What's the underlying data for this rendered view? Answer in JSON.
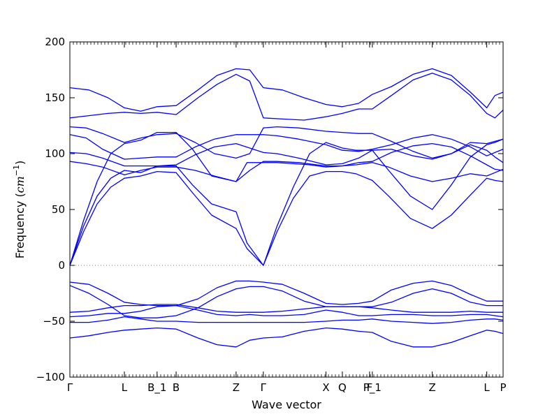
{
  "chart_data": {
    "type": "line",
    "xlabel": "Wave vector",
    "ylabel": "Frequency (cm⁻¹)",
    "ylabel_parts": {
      "prefix": "Frequency (",
      "unit_base": "cm",
      "unit_exp": "−1",
      "suffix": ")"
    },
    "ylim": [
      -100,
      200
    ],
    "yticks": [
      -100,
      -50,
      0,
      50,
      100,
      150,
      200
    ],
    "xlim": [
      0,
      15.9
    ],
    "grid": false,
    "line_color": "#0000ff",
    "zero_line_color": "#777777",
    "kpoints": [
      {
        "label": "Γ",
        "x": 0
      },
      {
        "label": "L",
        "x": 2.0
      },
      {
        "label": "B_1",
        "x": 3.2
      },
      {
        "label": "B",
        "x": 3.9
      },
      {
        "label": "Z",
        "x": 6.1
      },
      {
        "label": "Γ",
        "x": 7.1
      },
      {
        "label": "X",
        "x": 9.4
      },
      {
        "label": "Q",
        "x": 10.0
      },
      {
        "label": "F",
        "x": 11.0
      },
      {
        "label": "P_1",
        "x": 11.1
      },
      {
        "label": "Z",
        "x": 13.3
      },
      {
        "label": "L",
        "x": 15.3
      },
      {
        "label": "P",
        "x": 15.9
      }
    ],
    "series": [
      {
        "x": [
          0,
          0.5,
          1.0,
          1.5,
          2.0,
          2.6,
          3.2,
          3.9,
          4.5,
          5.2,
          6.1,
          6.5,
          7.1,
          7.6,
          8.2,
          8.8,
          9.4,
          10.0,
          10.5,
          11.1,
          11.7,
          12.5,
          13.3,
          14.0,
          14.7,
          15.3,
          15.6,
          15.9
        ],
        "values": [
          0,
          30,
          55,
          70,
          78,
          80,
          84,
          83,
          65,
          45,
          33,
          15,
          0,
          30,
          60,
          80,
          84,
          84,
          82,
          76,
          62,
          42,
          33,
          45,
          63,
          78,
          76,
          75
        ]
      },
      {
        "x": [
          0,
          0.5,
          1.0,
          1.5,
          2.0,
          2.6,
          3.2,
          3.9,
          4.5,
          5.2,
          6.1,
          6.5,
          7.1,
          7.6,
          8.2,
          8.8,
          9.4,
          10.0,
          10.5,
          11.1,
          11.7,
          12.5,
          13.3,
          14.0,
          14.7,
          15.3,
          15.6,
          15.9
        ],
        "values": [
          0,
          35,
          62,
          78,
          85,
          83,
          89,
          89,
          72,
          55,
          48,
          20,
          0,
          35,
          70,
          100,
          110,
          105,
          103,
          103,
          85,
          62,
          50,
          72,
          97,
          108,
          110,
          113
        ]
      },
      {
        "x": [
          0,
          0.5,
          1.0,
          1.5,
          2.0,
          2.6,
          3.2,
          3.9,
          4.5,
          5.2,
          6.1,
          6.5,
          7.1,
          7.6,
          8.2,
          8.8,
          9.4,
          10.0,
          10.5,
          11.1,
          11.7,
          12.5,
          13.3,
          14.0,
          14.7,
          15.3,
          15.6,
          15.9
        ],
        "values": [
          0,
          40,
          75,
          100,
          109,
          112,
          119,
          119,
          104,
          80,
          75,
          92,
          92,
          92,
          91,
          90,
          88,
          89,
          90,
          92,
          88,
          80,
          75,
          78,
          82,
          80,
          83,
          86
        ]
      },
      {
        "x": [
          0,
          0.6,
          1.2,
          2.0,
          2.6,
          3.2,
          3.9,
          4.6,
          5.3,
          6.1,
          6.6,
          7.1,
          7.6,
          8.4,
          9.4,
          10.0,
          10.6,
          11.1,
          11.8,
          12.6,
          13.3,
          14.0,
          14.7,
          15.3,
          15.6,
          15.9
        ],
        "values": [
          93,
          91,
          88,
          81,
          85,
          88,
          88,
          85,
          80,
          75,
          85,
          93,
          93,
          92,
          89,
          89,
          92,
          93,
          101,
          107,
          109,
          106,
          98,
          90,
          86,
          85
        ]
      },
      {
        "x": [
          0,
          0.6,
          1.2,
          2.0,
          2.6,
          3.2,
          3.9,
          4.6,
          5.3,
          6.1,
          6.6,
          7.1,
          7.6,
          8.4,
          9.4,
          10.0,
          10.6,
          11.1,
          11.8,
          12.6,
          13.3,
          14.0,
          14.7,
          15.3,
          15.6,
          15.9
        ],
        "values": [
          101,
          100,
          96,
          89,
          89,
          89,
          90,
          99,
          106,
          109,
          105,
          101,
          100,
          96,
          90,
          91,
          96,
          103,
          104,
          98,
          95,
          100,
          108,
          103,
          97,
          92
        ]
      },
      {
        "x": [
          0,
          0.6,
          1.2,
          2.0,
          2.6,
          3.2,
          3.9,
          4.6,
          5.3,
          6.1,
          6.6,
          7.1,
          7.6,
          8.4,
          9.4,
          10.0,
          10.6,
          11.1,
          11.8,
          12.6,
          13.3,
          14.0,
          14.7,
          15.3,
          15.6,
          15.9
        ],
        "values": [
          117,
          114,
          104,
          95,
          96,
          97,
          97,
          106,
          113,
          117,
          117,
          117,
          116,
          113,
          108,
          103,
          102,
          104,
          108,
          114,
          117,
          113,
          106,
          98,
          101,
          104
        ]
      },
      {
        "x": [
          0,
          0.6,
          1.2,
          2.0,
          2.6,
          3.2,
          3.9,
          4.6,
          5.3,
          6.1,
          6.6,
          7.1,
          7.6,
          8.4,
          9.4,
          10.0,
          10.6,
          11.1,
          11.8,
          12.6,
          13.3,
          14.0,
          14.7,
          15.3,
          15.6,
          15.9
        ],
        "values": [
          124,
          123,
          118,
          110,
          114,
          117,
          118,
          110,
          100,
          96,
          100,
          123,
          124,
          123,
          120,
          119,
          118,
          118,
          111,
          102,
          96,
          100,
          110,
          109,
          111,
          113
        ]
      },
      {
        "x": [
          0,
          0.7,
          1.4,
          2.0,
          2.6,
          3.2,
          3.9,
          4.7,
          5.4,
          6.1,
          6.6,
          7.1,
          7.8,
          8.6,
          9.4,
          10.0,
          10.6,
          11.1,
          11.8,
          12.6,
          13.3,
          14.0,
          14.7,
          15.3,
          15.6,
          15.9
        ],
        "values": [
          132,
          134,
          136,
          137,
          136,
          137,
          135,
          150,
          162,
          171,
          165,
          132,
          131,
          130,
          133,
          136,
          140,
          140,
          152,
          166,
          172,
          166,
          152,
          136,
          132,
          139
        ]
      },
      {
        "x": [
          0,
          0.7,
          1.4,
          2.0,
          2.6,
          3.2,
          3.9,
          4.7,
          5.4,
          6.1,
          6.6,
          7.1,
          7.8,
          8.6,
          9.4,
          10.0,
          10.6,
          11.1,
          11.8,
          12.6,
          13.3,
          14.0,
          14.7,
          15.3,
          15.6,
          15.9
        ],
        "values": [
          159,
          157,
          150,
          141,
          138,
          142,
          143,
          157,
          170,
          176,
          175,
          159,
          157,
          150,
          144,
          142,
          145,
          153,
          160,
          171,
          176,
          170,
          155,
          141,
          152,
          155
        ]
      },
      {
        "x": [
          0,
          0.7,
          1.4,
          2.0,
          2.6,
          3.2,
          3.9,
          4.7,
          5.4,
          6.1,
          6.6,
          7.1,
          7.8,
          8.6,
          9.4,
          10.0,
          10.6,
          11.1,
          11.8,
          12.6,
          13.3,
          14.0,
          14.7,
          15.3,
          15.6,
          15.9
        ],
        "values": [
          -15,
          -17,
          -25,
          -33,
          -35,
          -36,
          -36,
          -30,
          -20,
          -14,
          -14,
          -15,
          -17,
          -25,
          -34,
          -35,
          -34,
          -32,
          -22,
          -16,
          -14,
          -18,
          -26,
          -32,
          -32,
          -32
        ]
      },
      {
        "x": [
          0,
          0.7,
          1.4,
          2.0,
          2.6,
          3.2,
          3.9,
          4.7,
          5.4,
          6.1,
          6.6,
          7.1,
          7.8,
          8.6,
          9.4,
          10.0,
          10.6,
          11.1,
          11.8,
          12.6,
          13.3,
          14.0,
          14.7,
          15.3,
          15.6,
          15.9
        ],
        "values": [
          -18,
          -25,
          -35,
          -45,
          -47,
          -47,
          -45,
          -38,
          -28,
          -21,
          -19,
          -19,
          -23,
          -32,
          -37,
          -37,
          -37,
          -37,
          -33,
          -25,
          -21,
          -25,
          -33,
          -36,
          -36,
          -36
        ]
      },
      {
        "x": [
          0,
          0.7,
          1.4,
          2.0,
          2.6,
          3.2,
          3.9,
          4.7,
          5.4,
          6.1,
          6.6,
          7.1,
          7.8,
          8.6,
          9.4,
          10.0,
          10.6,
          11.1,
          11.8,
          12.6,
          13.3,
          14.0,
          14.7,
          15.3,
          15.6,
          15.9
        ],
        "values": [
          -42,
          -41,
          -38,
          -36,
          -36,
          -35,
          -35,
          -38,
          -41,
          -42,
          -42,
          -42,
          -41,
          -39,
          -37,
          -37,
          -37,
          -38,
          -40,
          -42,
          -42,
          -42,
          -41,
          -42,
          -42,
          -42
        ]
      },
      {
        "x": [
          0,
          0.7,
          1.4,
          2.0,
          2.6,
          3.2,
          3.9,
          4.7,
          5.4,
          6.1,
          6.6,
          7.1,
          7.8,
          8.6,
          9.4,
          10.0,
          10.6,
          11.1,
          11.8,
          12.6,
          13.3,
          14.0,
          14.7,
          15.3,
          15.6,
          15.9
        ],
        "values": [
          -46,
          -45,
          -43,
          -43,
          -41,
          -37,
          -36,
          -40,
          -44,
          -45,
          -44,
          -45,
          -45,
          -44,
          -40,
          -42,
          -45,
          -45,
          -44,
          -44,
          -45,
          -45,
          -44,
          -44,
          -45,
          -46
        ]
      },
      {
        "x": [
          0,
          0.7,
          1.4,
          2.0,
          2.6,
          3.2,
          3.9,
          4.7,
          5.4,
          6.1,
          6.6,
          7.1,
          7.8,
          8.6,
          9.4,
          10.0,
          10.6,
          11.1,
          11.8,
          12.6,
          13.3,
          14.0,
          14.7,
          15.3,
          15.6,
          15.9
        ],
        "values": [
          -51,
          -51,
          -49,
          -46,
          -48,
          -50,
          -50,
          -51,
          -51,
          -51,
          -51,
          -51,
          -51,
          -51,
          -50,
          -49,
          -49,
          -48,
          -50,
          -51,
          -52,
          -51,
          -49,
          -48,
          -48,
          -49
        ]
      },
      {
        "x": [
          0,
          0.7,
          1.4,
          2.0,
          2.6,
          3.2,
          3.9,
          4.7,
          5.4,
          6.1,
          6.6,
          7.1,
          7.8,
          8.6,
          9.4,
          10.0,
          10.6,
          11.1,
          11.8,
          12.6,
          13.3,
          14.0,
          14.7,
          15.3,
          15.6,
          15.9
        ],
        "values": [
          -65,
          -63,
          -60,
          -58,
          -57,
          -56,
          -57,
          -65,
          -71,
          -73,
          -67,
          -65,
          -64,
          -59,
          -56,
          -57,
          -59,
          -60,
          -68,
          -73,
          -73,
          -69,
          -63,
          -58,
          -59,
          -61
        ]
      }
    ]
  }
}
